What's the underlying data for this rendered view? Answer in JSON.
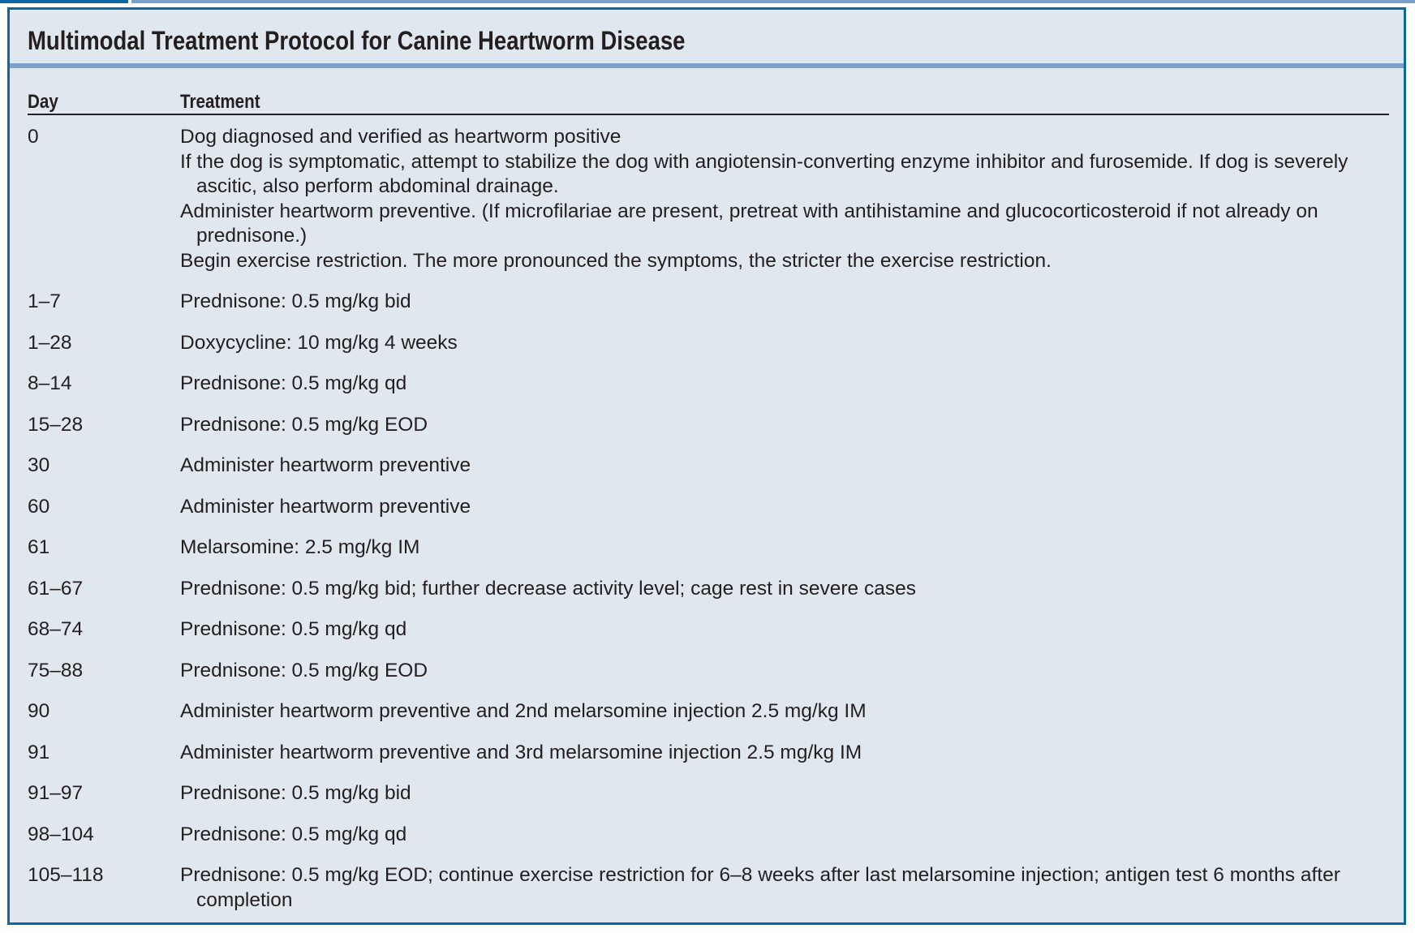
{
  "title": "Multimodal Treatment Protocol for Canine Heartworm Disease",
  "columns": {
    "day": "Day",
    "treatment": "Treatment"
  },
  "rows": [
    {
      "day": "0",
      "lines": [
        "Dog diagnosed and verified as heartworm positive",
        "If the dog is symptomatic, attempt to stabilize the dog with angiotensin-converting enzyme inhibitor and furosemide. If dog is severely ascitic, also perform abdominal drainage.",
        "Administer heartworm preventive. (If microfilariae are present, pretreat with antihistamine and glucocorticosteroid if not already on prednisone.)",
        "Begin exercise restriction. The more pronounced the symptoms, the stricter the exercise restriction."
      ]
    },
    {
      "day": "1–7",
      "lines": [
        "Prednisone: 0.5 mg/kg bid"
      ]
    },
    {
      "day": "1–28",
      "lines": [
        "Doxycycline: 10 mg/kg 4 weeks"
      ]
    },
    {
      "day": "8–14",
      "lines": [
        "Prednisone: 0.5 mg/kg qd"
      ]
    },
    {
      "day": "15–28",
      "lines": [
        "Prednisone: 0.5 mg/kg EOD"
      ]
    },
    {
      "day": "30",
      "lines": [
        "Administer heartworm preventive"
      ]
    },
    {
      "day": "60",
      "lines": [
        "Administer heartworm preventive"
      ]
    },
    {
      "day": "61",
      "lines": [
        "Melarsomine: 2.5 mg/kg IM"
      ]
    },
    {
      "day": "61–67",
      "lines": [
        "Prednisone: 0.5 mg/kg bid; further decrease activity level; cage rest in severe cases"
      ]
    },
    {
      "day": "68–74",
      "lines": [
        "Prednisone: 0.5 mg/kg qd"
      ]
    },
    {
      "day": "75–88",
      "lines": [
        "Prednisone: 0.5 mg/kg EOD"
      ]
    },
    {
      "day": "90",
      "lines": [
        "Administer heartworm preventive and 2nd melarsomine injection 2.5 mg/kg IM"
      ]
    },
    {
      "day": "91",
      "lines": [
        "Administer heartworm preventive and 3rd melarsomine injection 2.5 mg/kg IM"
      ]
    },
    {
      "day": "91–97",
      "lines": [
        "Prednisone: 0.5 mg/kg bid"
      ]
    },
    {
      "day": "98–104",
      "lines": [
        "Prednisone: 0.5 mg/kg qd"
      ]
    },
    {
      "day": "105–118",
      "lines": [
        "Prednisone: 0.5 mg/kg EOD; continue exercise restriction for 6–8 weeks after last melarsomine injection; antigen test 6 months after completion"
      ]
    }
  ],
  "colors": {
    "border": "#0b68a3",
    "accent_rule": "#7aa2c9",
    "background": "#e1e7ef",
    "text": "#231f20"
  }
}
